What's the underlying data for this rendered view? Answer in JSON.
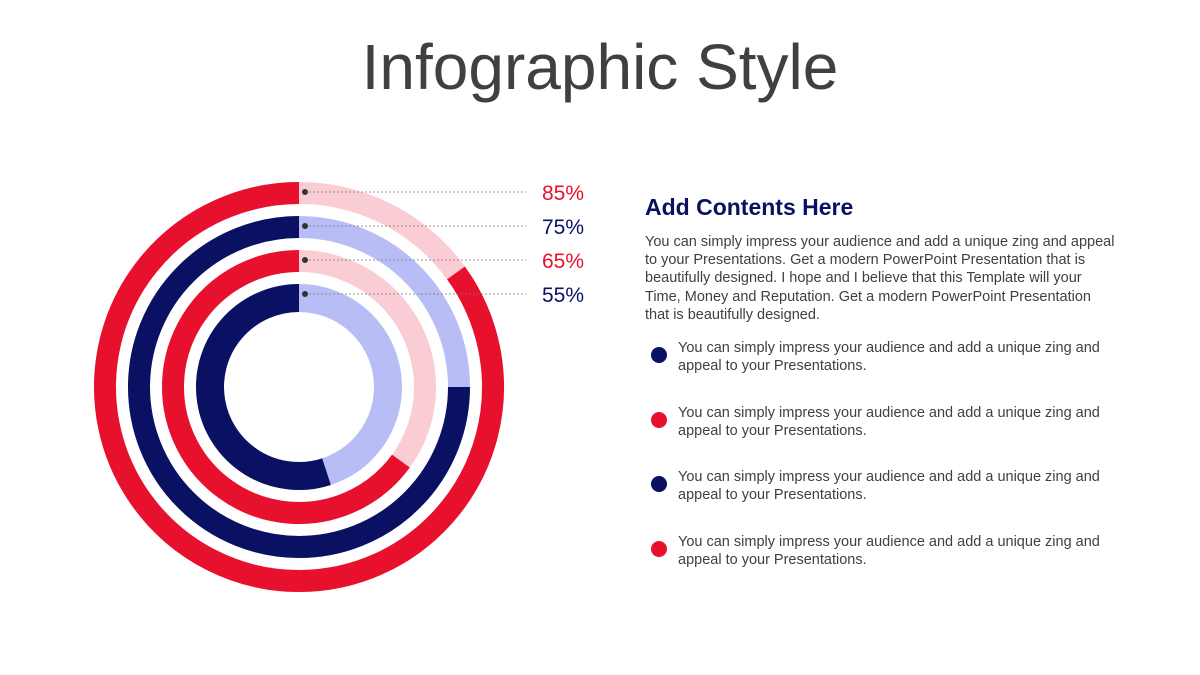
{
  "title": "Infographic Style",
  "chart_data": {
    "type": "radial-rings",
    "series": [
      {
        "value": 85,
        "value_label": "85%",
        "color": "#e8112d",
        "track_color": "#f9cdd3"
      },
      {
        "value": 75,
        "value_label": "75%",
        "color": "#0a1163",
        "track_color": "#b8bdf5"
      },
      {
        "value": 65,
        "value_label": "65%",
        "color": "#e8112d",
        "track_color": "#f9cdd3"
      },
      {
        "value": 55,
        "value_label": "55%",
        "color": "#0a1163",
        "track_color": "#b8bdf5"
      }
    ]
  },
  "content": {
    "heading": "Add Contents Here",
    "paragraph": "You can simply impress your audience and add a unique zing and appeal to your Presentations. Get a modern PowerPoint  Presentation that is beautifully designed. I hope and I believe that this Template will your Time, Money and Reputation. Get a modern PowerPoint Presentation that is beautifully designed.",
    "bullets": [
      {
        "text": " You can simply impress your audience and add a unique zing and appeal to your Presentations.",
        "color": "#0a1163"
      },
      {
        "text": " You can simply impress your audience and add a unique zing and appeal to your Presentations.",
        "color": "#e8112d"
      },
      {
        "text": " You can simply impress your audience and add a unique zing and appeal to your Presentations.",
        "color": "#0a1163"
      },
      {
        "text": " You can simply impress your audience and add a unique zing and appeal to your Presentations.",
        "color": "#e8112d"
      }
    ]
  }
}
